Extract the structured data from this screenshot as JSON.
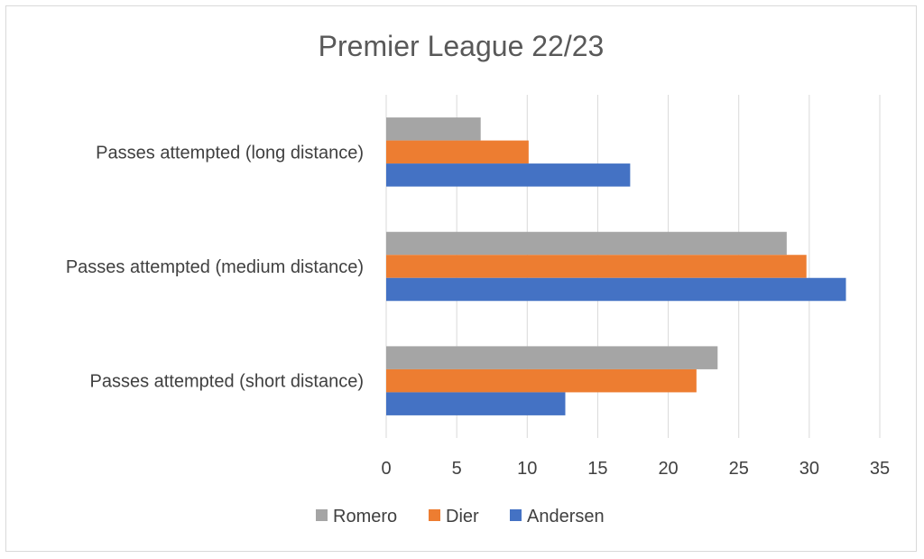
{
  "chart_data": {
    "type": "bar",
    "orientation": "horizontal",
    "title": "Premier League 22/23",
    "xlabel": "",
    "ylabel": "",
    "categories": [
      "Passes attempted (long distance)",
      "Passes attempted (medium distance)",
      "Passes attempted (short distance)"
    ],
    "series": [
      {
        "name": "Romero",
        "color": "#a5a5a5",
        "values": [
          6.7,
          28.4,
          23.5
        ]
      },
      {
        "name": "Dier",
        "color": "#ed7d31",
        "values": [
          10.1,
          29.8,
          22.0
        ]
      },
      {
        "name": "Andersen",
        "color": "#4472c4",
        "values": [
          17.3,
          32.6,
          12.7
        ]
      }
    ],
    "xlim": [
      0,
      35
    ],
    "xticks": [
      "0",
      "5",
      "10",
      "15",
      "20",
      "25",
      "30",
      "35"
    ],
    "grid": true,
    "legend_position": "bottom"
  }
}
